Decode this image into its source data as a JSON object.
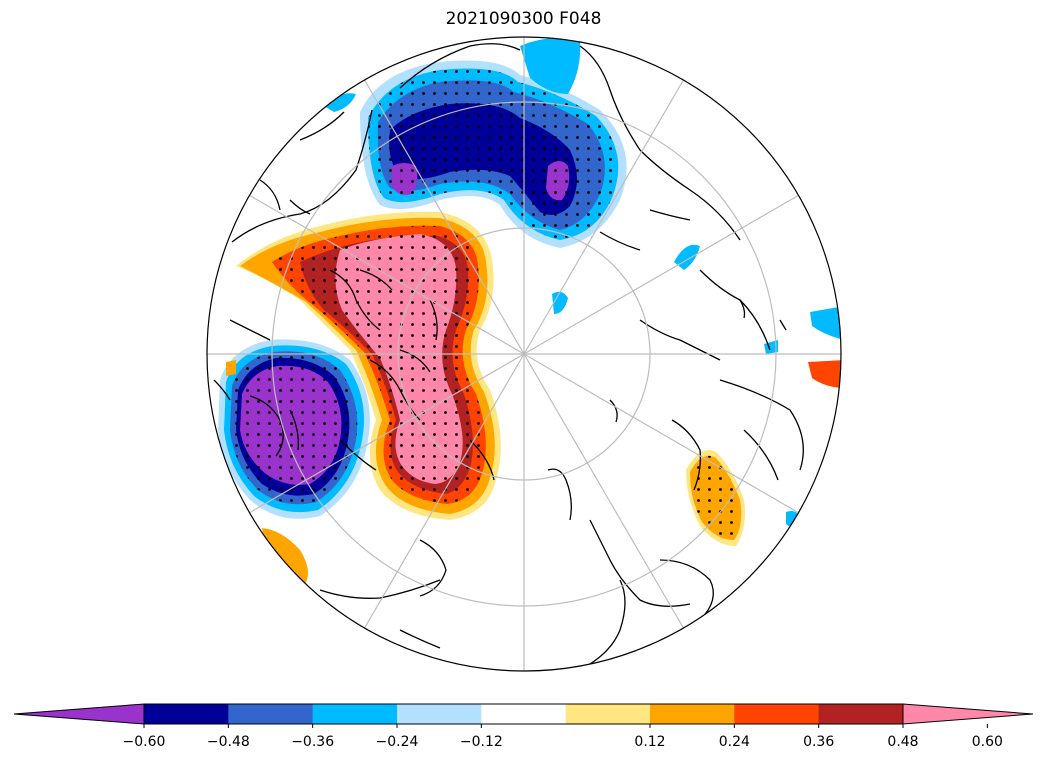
{
  "figure": {
    "title": "2021090300 F048"
  },
  "map": {
    "projection": "north-polar-stereographic",
    "graticule": "on",
    "coastlines": "on",
    "stippling": "significant regions"
  },
  "colorbar": {
    "orientation": "horizontal",
    "extend": "both",
    "bins": [
      {
        "range": "< -0.60",
        "color": "#9933cc"
      },
      {
        "range": "-0.60 to -0.48",
        "color": "#000099"
      },
      {
        "range": "-0.48 to -0.36",
        "color": "#3366cc"
      },
      {
        "range": "-0.36 to -0.24",
        "color": "#00bbff"
      },
      {
        "range": "-0.24 to -0.12",
        "color": "#b3e0ff"
      },
      {
        "range": "-0.12 to 0.12",
        "color": "#ffffff"
      },
      {
        "range": "0.12 to 0.24",
        "color": "#ffe680"
      },
      {
        "range": "0.24 to 0.36",
        "color": "#ffa500"
      },
      {
        "range": "0.36 to 0.48",
        "color": "#ff4400"
      },
      {
        "range": "0.48 to 0.60",
        "color": "#b22222"
      },
      {
        "range": "> 0.60",
        "color": "#ff88aa"
      }
    ],
    "ticks": [
      "−0.60",
      "−0.48",
      "−0.36",
      "−0.24",
      "−0.12",
      "0.12",
      "0.24",
      "0.36",
      "0.48",
      "0.60"
    ]
  }
}
